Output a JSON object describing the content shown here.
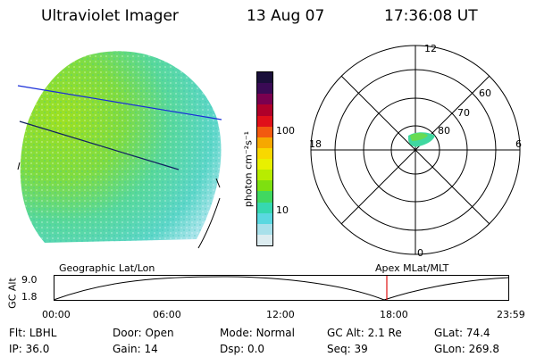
{
  "header": {
    "title": "Ultraviolet Imager",
    "date": "13 Aug 07",
    "time": "17:36:08 UT"
  },
  "colorbar": {
    "unit_label": "photon cm⁻²s⁻¹",
    "ticks": [
      "100",
      "10"
    ],
    "colors": [
      "#1a0f3a",
      "#3a0a55",
      "#7a004f",
      "#b0002a",
      "#e0101a",
      "#f25a10",
      "#f6a800",
      "#f8d800",
      "#e8f000",
      "#b8ec00",
      "#7ee010",
      "#40d860",
      "#36d8b0",
      "#5ad8e0",
      "#a8e0ea",
      "#dcecf0"
    ]
  },
  "polar": {
    "clock_labels": [
      "12",
      "18",
      "6",
      "0"
    ],
    "lat_labels": [
      "60",
      "70",
      "80"
    ]
  },
  "timeline": {
    "left_label": "Geographic Lat/Lon",
    "right_label": "Apex MLat/MLT",
    "axis_label": "GC Alt",
    "y_ticks": [
      "9.0",
      "1.8"
    ],
    "x_ticks": [
      "00:00",
      "06:00",
      "12:00",
      "18:00",
      "23:59"
    ],
    "marker_color": "#e01010"
  },
  "info": {
    "row1": [
      {
        "key": "Flt:",
        "value": "LBHL"
      },
      {
        "key": "Door:",
        "value": "Open"
      },
      {
        "key": "Mode:",
        "value": "Normal"
      },
      {
        "key": "GC Alt:",
        "value": "2.1 Re"
      },
      {
        "key": "GLat:",
        "value": "74.4"
      }
    ],
    "row2": [
      {
        "key": "IP:",
        "value": "36.0"
      },
      {
        "key": "Gain:",
        "value": "14"
      },
      {
        "key": "Dsp:",
        "value": "0.0"
      },
      {
        "key": "Seq:",
        "value": "39"
      },
      {
        "key": "GLon:",
        "value": "269.8"
      }
    ]
  }
}
